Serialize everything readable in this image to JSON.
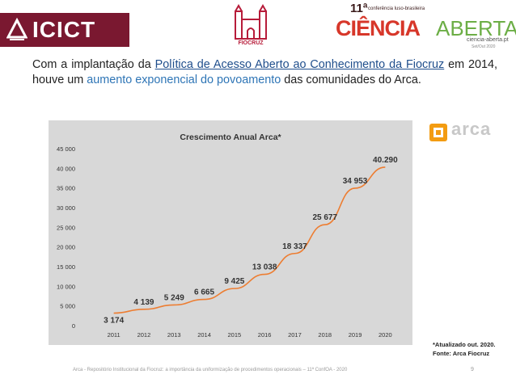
{
  "header": {
    "icict_label": "ICICT",
    "fiocruz_label": "FIOCRUZ",
    "conference": {
      "number": "11ª",
      "subtitle": "conferência luso-brasileira",
      "word1": "CIÊNCIA",
      "word2": "ABERTA",
      "site": "ciencia-aberta.pt",
      "date": "Set/Out 2020"
    }
  },
  "intro": {
    "part1": "Com a implantação da ",
    "link": "Política de Acesso Aberto ao Conhecimento da Fiocruz",
    "part2": " em 2014, houve um ",
    "highlight": "aumento exponencial do povoamento",
    "part3": " das comunidades do Arca."
  },
  "arca_logo": "arca",
  "colors": {
    "line": "#ed7d31",
    "panel": "#d8d8d8",
    "brand_icict": "#7a1830",
    "link": "#1f4e8c",
    "highlight": "#2e75b6"
  },
  "chart_data": {
    "type": "line",
    "title": "Crescimento Anual Arca*",
    "categories": [
      "2011",
      "2012",
      "2013",
      "2014",
      "2015",
      "2016",
      "2017",
      "2018",
      "2019",
      "2020"
    ],
    "values": [
      3174,
      4139,
      5249,
      6665,
      9425,
      13038,
      18337,
      25677,
      34953,
      40290
    ],
    "data_labels": [
      "3 174",
      "4 139",
      "5 249",
      "6 665",
      "9 425",
      "13 038",
      "18 337",
      "25 677",
      "34 953",
      "40.290"
    ],
    "y_ticks": [
      "0",
      "5 000",
      "10 000",
      "15 000",
      "20 000",
      "25 000",
      "30 000",
      "35 000",
      "40 000",
      "45 000"
    ],
    "ylim": [
      0,
      45000
    ],
    "grid": false,
    "legend": "none"
  },
  "notes": {
    "line1": "*Atualizado out. 2020.",
    "line2": "Fonte: Arca Fiocruz"
  },
  "footer": {
    "text": "Arca - Repositório Institucional da Fiocruz: a importância da uniformização de procedimentos operacionais – 11ª ConfOA - 2020",
    "page": "9"
  }
}
